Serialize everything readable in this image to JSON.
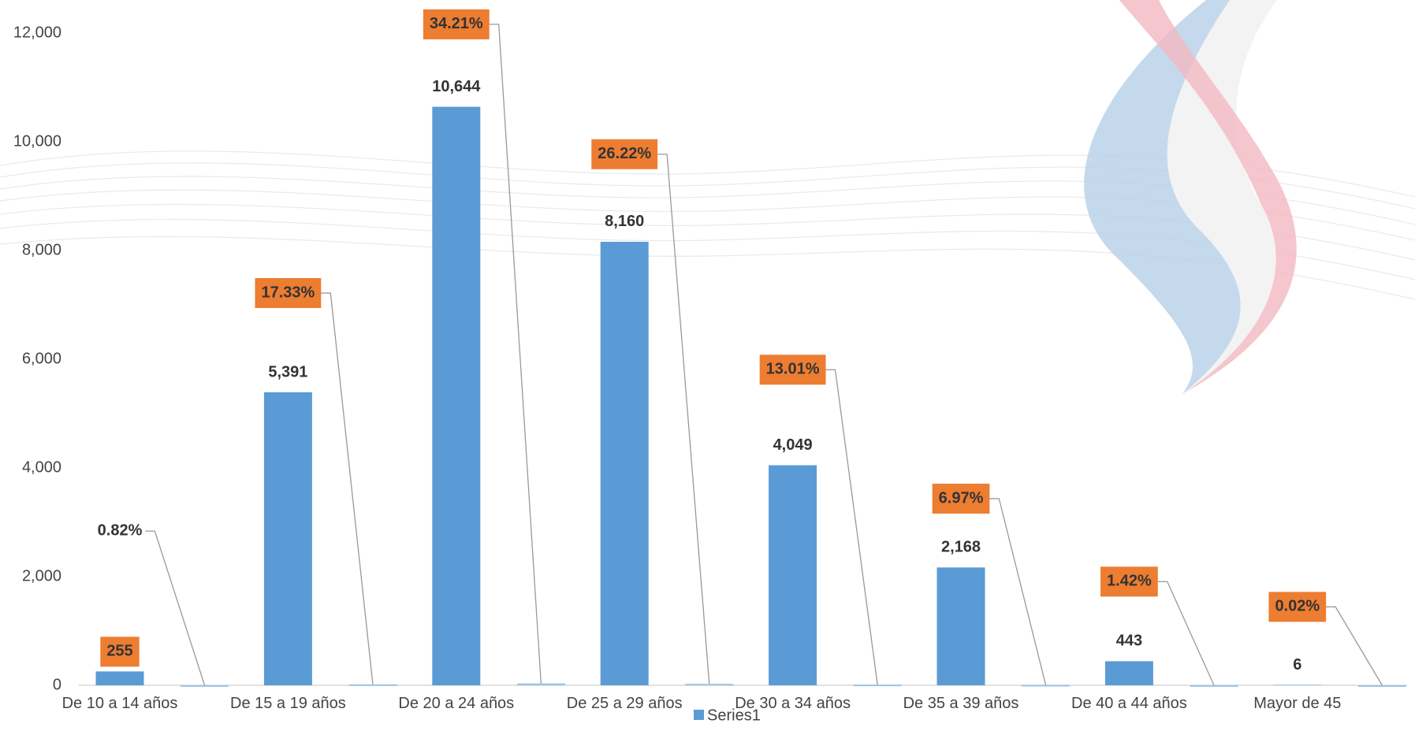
{
  "chart_data": {
    "type": "bar",
    "categories": [
      "De 10 a 14 años",
      "De 15 a 19 años",
      "De 20 a 24 años",
      "De 25 a 29 años",
      "De 30 a 34 años",
      "De 35 a 39 años",
      "De 40 a 44 años",
      "Mayor de 45"
    ],
    "series": [
      {
        "name": "Series1",
        "color": "#5b9bd5",
        "values": [
          255,
          5391,
          10644,
          8160,
          4049,
          2168,
          443,
          6
        ],
        "value_labels": [
          "255",
          "5,391",
          "10,644",
          "8,160",
          "4,049",
          "2,168",
          "443",
          "6"
        ],
        "value_label_colors": [
          "#ed7d31",
          null,
          null,
          null,
          null,
          null,
          null,
          null
        ]
      },
      {
        "color": "#9dc3e6",
        "values": [
          0.82,
          17.33,
          34.21,
          26.22,
          13.01,
          6.97,
          1.42,
          0.02
        ],
        "value_labels": [
          "0.82%",
          "17.33%",
          "34.21%",
          "26.22%",
          "13.01%",
          "6.97%",
          "1.42%",
          "0.02%"
        ],
        "value_label_colors": [
          null,
          "#ed7d31",
          "#ed7d31",
          "#ed7d31",
          "#ed7d31",
          "#ed7d31",
          "#ed7d31",
          "#ed7d31"
        ]
      }
    ],
    "ylim": [
      0,
      12000
    ],
    "yticks": [
      0,
      {
        "value": 2000,
        "label": "2,000"
      },
      {
        "value": 4000,
        "label": "4,000"
      },
      {
        "value": 6000,
        "label": "6,000"
      },
      {
        "value": 8000,
        "label": "8,000"
      },
      {
        "value": 10000,
        "label": "10,000"
      },
      {
        "value": 12000,
        "label": "12,000"
      }
    ],
    "grid": false,
    "legend": "bottom"
  }
}
